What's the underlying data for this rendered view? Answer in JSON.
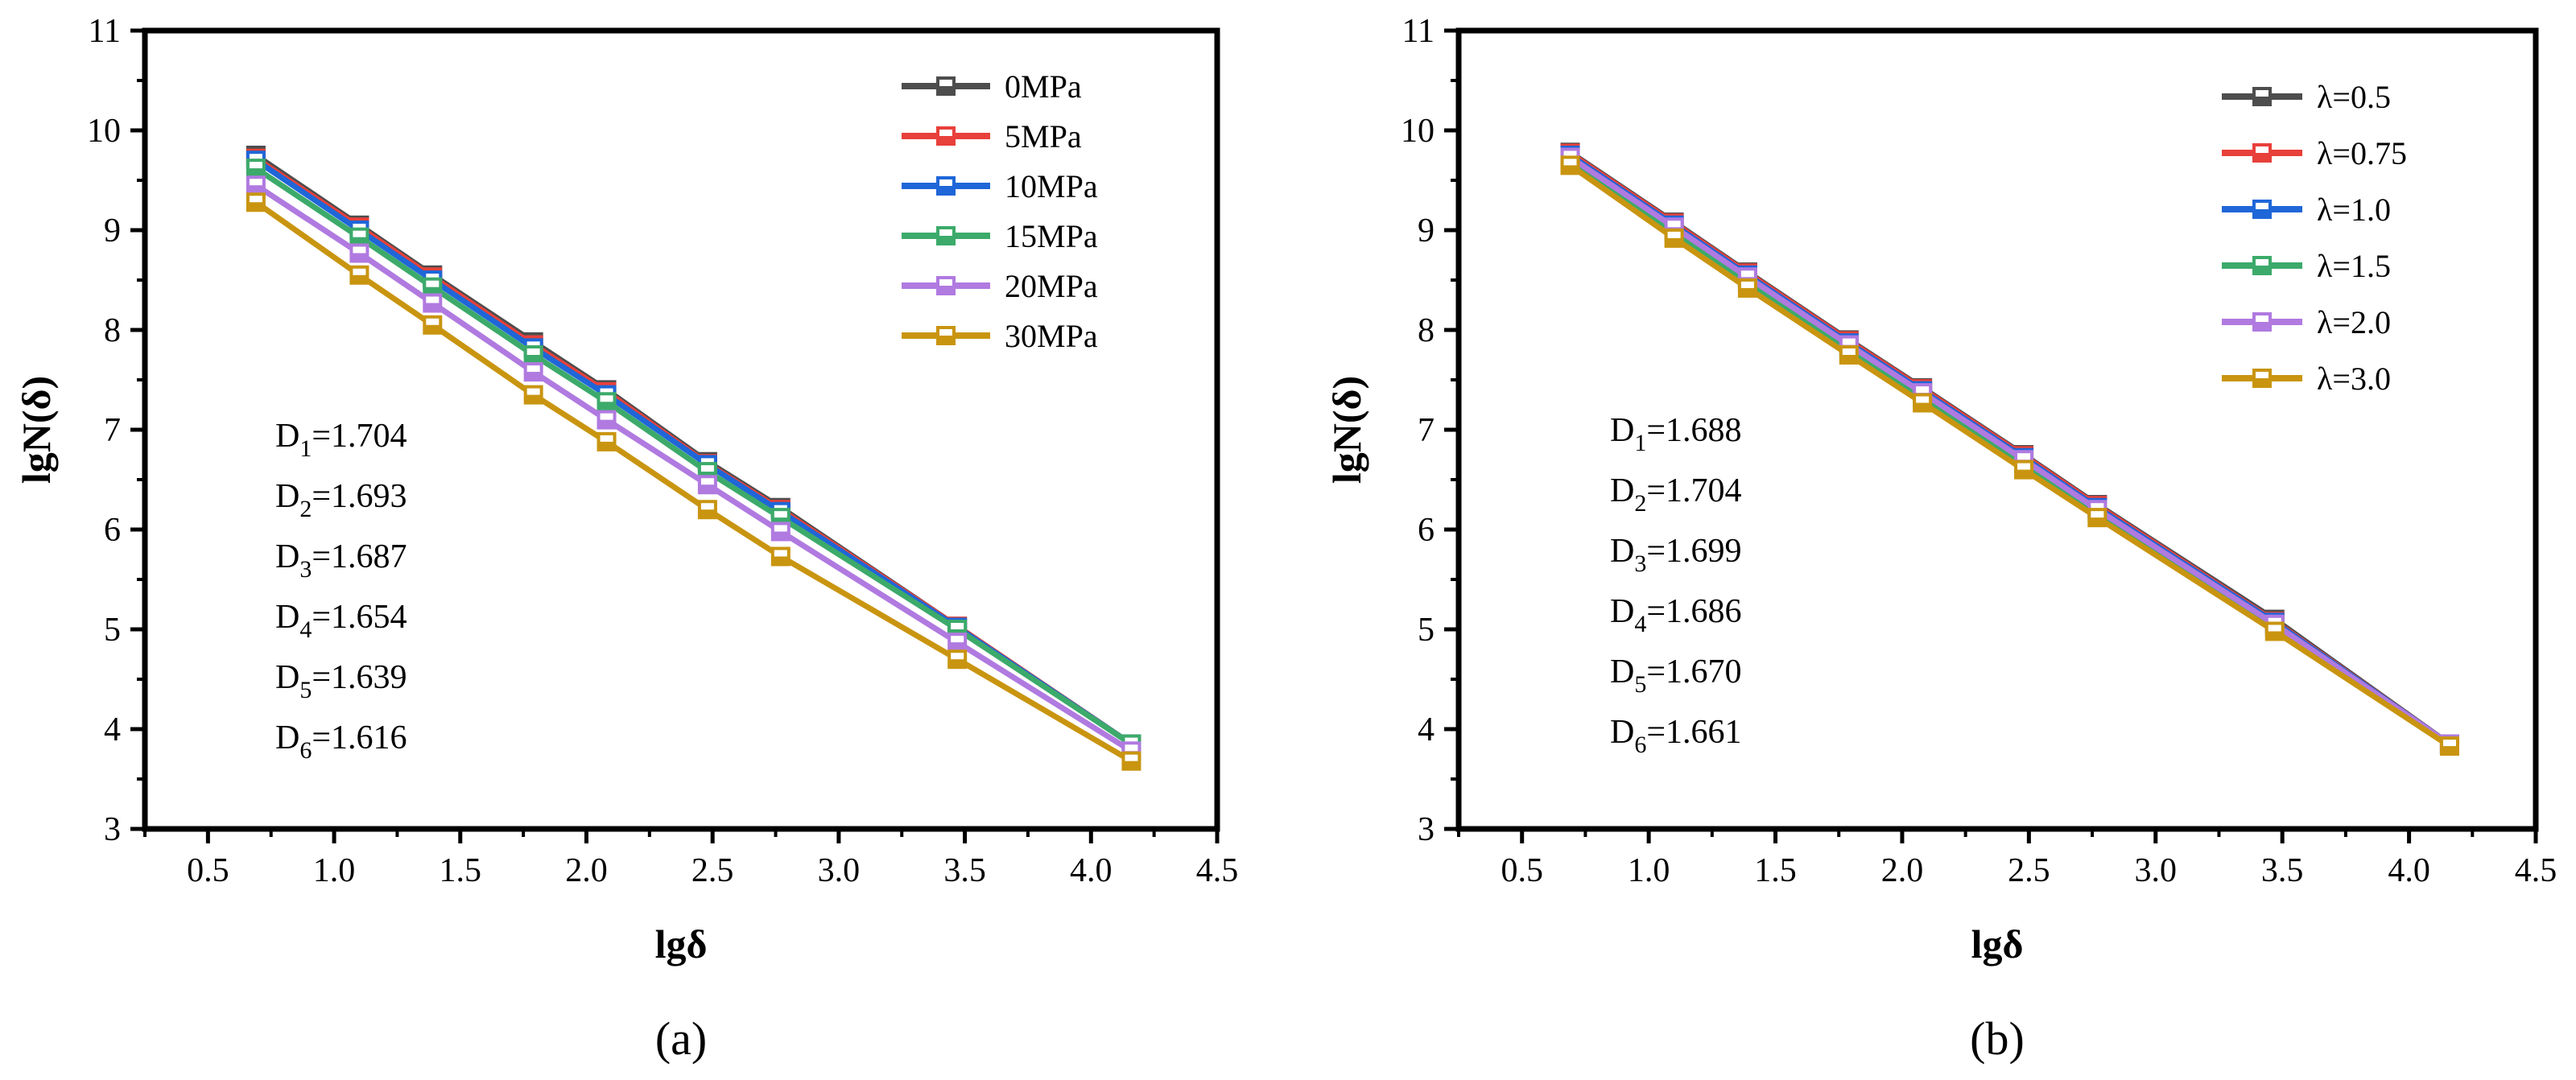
{
  "chart_data": [
    {
      "type": "line",
      "panel_label": "(a)",
      "xlabel": "lgδ",
      "ylabel": "lgN(δ)",
      "xlim": [
        0.25,
        4.5
      ],
      "ylim": [
        3,
        11
      ],
      "xticks": [
        "0.5",
        "1.0",
        "1.5",
        "2.0",
        "2.5",
        "3.0",
        "3.5",
        "4.0",
        "4.5"
      ],
      "yticks": [
        "3",
        "4",
        "5",
        "6",
        "7",
        "8",
        "9",
        "10",
        "11"
      ],
      "legend_position": "top-right",
      "x": [
        0.69,
        1.1,
        1.39,
        1.79,
        2.08,
        2.48,
        2.77,
        3.47,
        4.16
      ],
      "series": [
        {
          "name": "0MPa",
          "color": "#4d4d4d",
          "values": [
            9.75,
            9.05,
            8.55,
            7.88,
            7.4,
            6.68,
            6.22,
            5.03,
            3.85
          ]
        },
        {
          "name": "5MPa",
          "color": "#e8403a",
          "values": [
            9.72,
            9.03,
            8.53,
            7.85,
            7.38,
            6.66,
            6.2,
            5.03,
            3.85
          ]
        },
        {
          "name": "10MPa",
          "color": "#1f66d8",
          "values": [
            9.7,
            9.0,
            8.5,
            7.82,
            7.35,
            6.65,
            6.18,
            5.02,
            3.85
          ]
        },
        {
          "name": "15MPa",
          "color": "#3caa6a",
          "values": [
            9.62,
            8.93,
            8.43,
            7.75,
            7.28,
            6.58,
            6.12,
            5.0,
            3.85
          ]
        },
        {
          "name": "20MPa",
          "color": "#b07ae0",
          "values": [
            9.45,
            8.77,
            8.27,
            7.58,
            7.1,
            6.45,
            5.98,
            4.87,
            3.78
          ]
        },
        {
          "name": "30MPa",
          "color": "#c99510",
          "values": [
            9.28,
            8.55,
            8.05,
            7.35,
            6.88,
            6.2,
            5.73,
            4.7,
            3.68
          ]
        }
      ],
      "annotations": [
        {
          "sym": "D",
          "sub": "1",
          "val": "=1.704"
        },
        {
          "sym": "D",
          "sub": "2",
          "val": "=1.693"
        },
        {
          "sym": "D",
          "sub": "3",
          "val": "=1.687"
        },
        {
          "sym": "D",
          "sub": "4",
          "val": "=1.654"
        },
        {
          "sym": "D",
          "sub": "5",
          "val": "=1.639"
        },
        {
          "sym": "D",
          "sub": "6",
          "val": "=1.616"
        }
      ]
    },
    {
      "type": "line",
      "panel_label": "(b)",
      "xlabel": "lgδ",
      "ylabel": "lgN(δ)",
      "xlim": [
        0.25,
        4.5
      ],
      "ylim": [
        3,
        11
      ],
      "xticks": [
        "0.5",
        "1.0",
        "1.5",
        "2.0",
        "2.5",
        "3.0",
        "3.5",
        "4.0",
        "4.5"
      ],
      "yticks": [
        "3",
        "4",
        "5",
        "6",
        "7",
        "8",
        "9",
        "10",
        "11"
      ],
      "legend_position": "top-right",
      "x": [
        0.69,
        1.1,
        1.39,
        1.79,
        2.08,
        2.48,
        2.77,
        3.47,
        4.16
      ],
      "series": [
        {
          "name": "λ=0.5",
          "color": "#4d4d4d",
          "values": [
            9.78,
            9.08,
            8.58,
            7.9,
            7.42,
            6.75,
            6.25,
            5.1,
            3.85
          ]
        },
        {
          "name": "λ=0.75",
          "color": "#e8403a",
          "values": [
            9.77,
            9.07,
            8.57,
            7.89,
            7.41,
            6.74,
            6.24,
            5.08,
            3.85
          ]
        },
        {
          "name": "λ=1.0",
          "color": "#1f66d8",
          "values": [
            9.75,
            9.05,
            8.55,
            7.87,
            7.39,
            6.72,
            6.22,
            5.07,
            3.85
          ]
        },
        {
          "name": "λ=1.5",
          "color": "#3caa6a",
          "values": [
            9.68,
            8.98,
            8.48,
            7.8,
            7.32,
            6.66,
            6.17,
            5.03,
            3.85
          ]
        },
        {
          "name": "λ=2.0",
          "color": "#b07ae0",
          "values": [
            9.73,
            9.03,
            8.53,
            7.85,
            7.37,
            6.7,
            6.2,
            5.05,
            3.85
          ]
        },
        {
          "name": "λ=3.0",
          "color": "#c99510",
          "values": [
            9.65,
            8.92,
            8.42,
            7.75,
            7.27,
            6.6,
            6.12,
            4.98,
            3.83
          ]
        }
      ],
      "annotations": [
        {
          "sym": "D",
          "sub": "1",
          "val": "=1.688"
        },
        {
          "sym": "D",
          "sub": "2",
          "val": "=1.704"
        },
        {
          "sym": "D",
          "sub": "3",
          "val": "=1.699"
        },
        {
          "sym": "D",
          "sub": "4",
          "val": "=1.686"
        },
        {
          "sym": "D",
          "sub": "5",
          "val": "=1.670"
        },
        {
          "sym": "D",
          "sub": "6",
          "val": "=1.661"
        }
      ]
    }
  ]
}
